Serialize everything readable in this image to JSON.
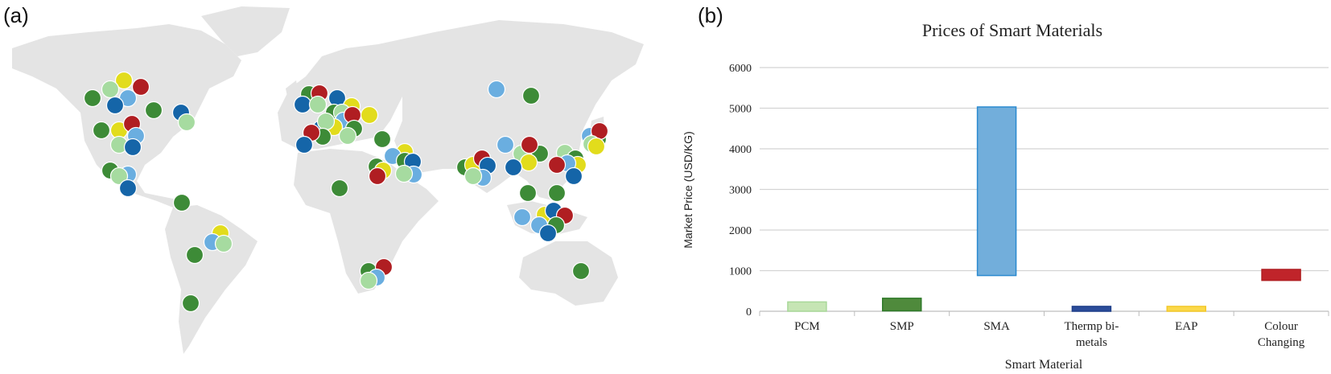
{
  "panels": {
    "a": "(a)",
    "b": "(b)"
  },
  "map": {
    "land_color": "#e4e4e4",
    "marker_colors": {
      "light-green": "#a6dba0",
      "green": "#3d8b37",
      "light-blue": "#6aaee0",
      "blue": "#1565a8",
      "yellow": "#e2dc1c",
      "red": "#b01e22"
    }
  },
  "chart_data": {
    "type": "bar",
    "bar_style": "floating range",
    "title": "Prices of Smart Materials",
    "xlabel": "Smart Material",
    "ylabel": "Market Price (USD/KG)",
    "ylim": [
      0,
      6000
    ],
    "yticks": [
      0,
      1000,
      2000,
      3000,
      4000,
      5000,
      6000
    ],
    "grid": true,
    "categories": [
      "PCM",
      "SMP",
      "SMA",
      "Thermp bi-metals",
      "EAP",
      "Colour Changing"
    ],
    "category_lines": [
      [
        "PCM"
      ],
      [
        "SMP"
      ],
      [
        "SMA"
      ],
      [
        "Thermp bi-",
        "metals"
      ],
      [
        "EAP"
      ],
      [
        "Colour",
        "Changing"
      ]
    ],
    "ranges": [
      [
        0,
        230
      ],
      [
        10,
        320
      ],
      [
        880,
        5030
      ],
      [
        0,
        120
      ],
      [
        0,
        120
      ],
      [
        760,
        1030
      ]
    ],
    "colors": [
      "#c6e5b4",
      "#4f8a3c",
      "#72aedb",
      "#2b4c9a",
      "#fbd94a",
      "#c0242a"
    ],
    "edge_colors": [
      "#a9d89a",
      "#2f7a2a",
      "#2a8ad0",
      "#1f3f8a",
      "#f3c82a",
      "#b01e22"
    ]
  }
}
